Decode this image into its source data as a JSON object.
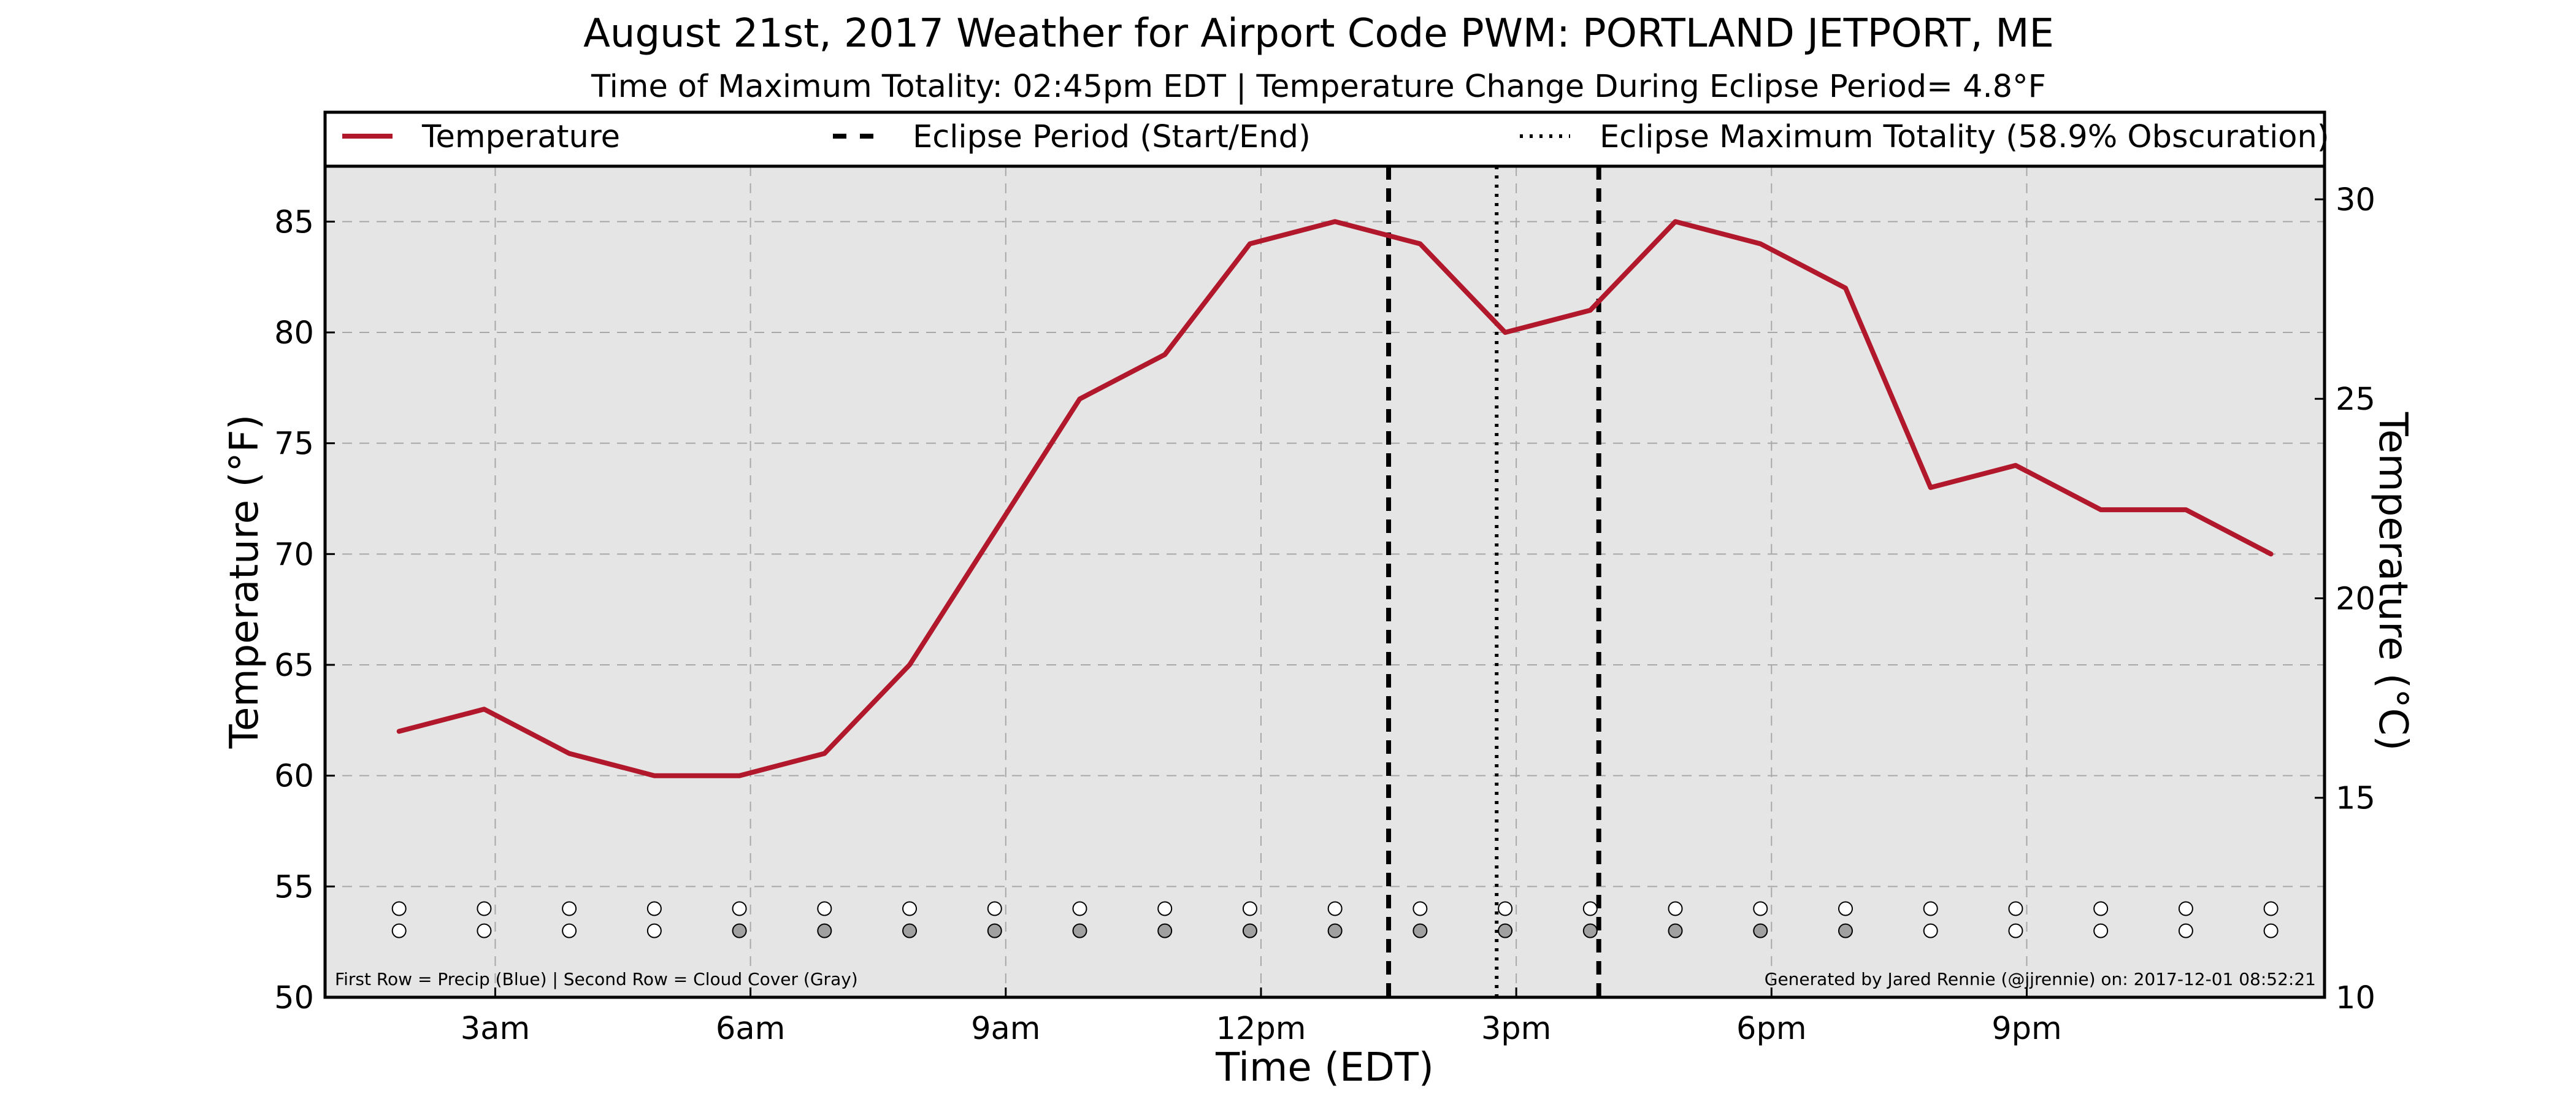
{
  "chart_data": {
    "type": "line",
    "title": "August 21st, 2017 Weather for Airport Code PWM: PORTLAND JETPORT, ME",
    "subtitle": "Time of Maximum Totality: 02:45pm EDT | Temperature Change During Eclipse Period= 4.8°F",
    "xlabel": "Time (EDT)",
    "ylabel": "Temperature (°F)",
    "ylabel_right": "Temperature (°C)",
    "xlim": [
      1,
      24.5
    ],
    "ylim": [
      50,
      87.5
    ],
    "ylim_right_celsius": [
      10,
      30.83
    ],
    "grid": true,
    "legend_placement": "top",
    "x_ticks": [
      {
        "x": 3,
        "label": "3am"
      },
      {
        "x": 6,
        "label": "6am"
      },
      {
        "x": 9,
        "label": "9am"
      },
      {
        "x": 12,
        "label": "12pm"
      },
      {
        "x": 15,
        "label": "3pm"
      },
      {
        "x": 18,
        "label": "6pm"
      },
      {
        "x": 21,
        "label": "9pm"
      }
    ],
    "y_ticks": [
      "50",
      "55",
      "60",
      "65",
      "70",
      "75",
      "80",
      "85"
    ],
    "y_ticks_right": [
      "10",
      "15",
      "20",
      "25",
      "30"
    ],
    "series": [
      {
        "name": "Temperature",
        "color": "#b2182b",
        "x": [
          1.87,
          2.87,
          3.87,
          4.87,
          5.87,
          6.87,
          7.87,
          8.87,
          9.87,
          10.87,
          11.87,
          12.87,
          13.87,
          14.87,
          15.87,
          16.87,
          17.87,
          18.87,
          19.87,
          20.87,
          21.87,
          22.87,
          23.87
        ],
        "y": [
          62,
          63,
          61,
          60,
          60,
          61,
          65,
          71,
          77,
          79,
          84,
          85,
          84,
          80,
          81,
          85,
          84,
          82,
          73,
          74,
          72,
          72,
          70
        ]
      }
    ],
    "vlines": [
      {
        "name": "Eclipse Period (Start/End)",
        "style": "dashed",
        "x": [
          13.5,
          15.97
        ]
      },
      {
        "name": "Eclipse Maximum Totality (58.9% Obscuration)",
        "style": "dotted",
        "x": [
          14.77
        ]
      }
    ],
    "marker_rows": {
      "y_precip": 54,
      "y_cloud": 53,
      "precip_color": "#ffffff",
      "cloud_colors": [
        "#ffffff",
        "#ffffff",
        "#ffffff",
        "#ffffff",
        "#a0a0a0",
        "#a0a0a0",
        "#a0a0a0",
        "#a0a0a0",
        "#a0a0a0",
        "#a0a0a0",
        "#a0a0a0",
        "#a0a0a0",
        "#a0a0a0",
        "#a0a0a0",
        "#a0a0a0",
        "#a0a0a0",
        "#a0a0a0",
        "#a0a0a0",
        "#ffffff",
        "#ffffff",
        "#ffffff",
        "#ffffff",
        "#ffffff"
      ]
    },
    "legend": [
      "Temperature",
      "Eclipse Period (Start/End)",
      "Eclipse Maximum Totality (58.9% Obscuration)"
    ],
    "annotations": {
      "bottom_left": "First Row = Precip (Blue) | Second Row = Cloud Cover (Gray)",
      "bottom_right": "Generated by Jared Rennie (@jjrennie) on: 2017-12-01 08:52:21"
    },
    "plot_background": "#e5e5e5"
  }
}
